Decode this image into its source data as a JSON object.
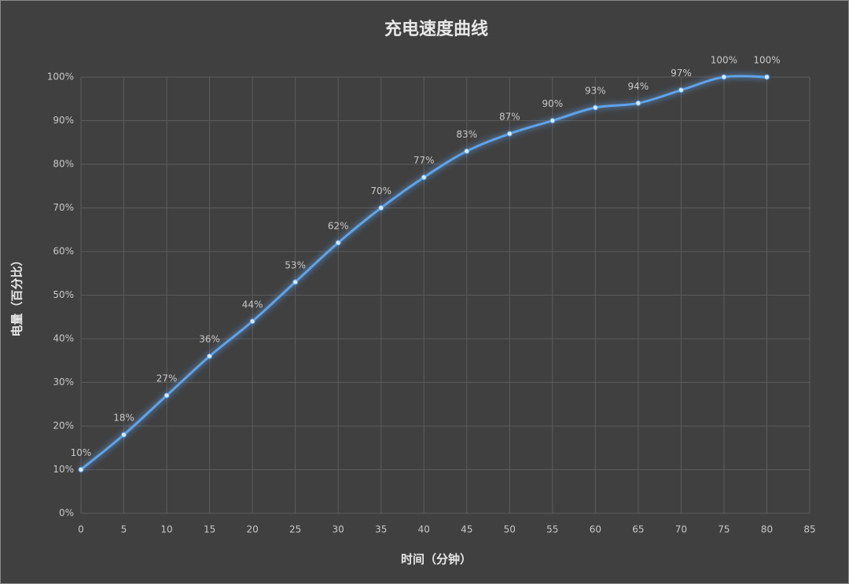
{
  "chart_data": {
    "type": "line",
    "title": "充电速度曲线",
    "x_label": "时间（分钟）",
    "y_label": "电量（百分比）",
    "x": [
      0,
      5,
      10,
      15,
      20,
      25,
      30,
      35,
      40,
      45,
      50,
      55,
      60,
      65,
      70,
      75,
      80
    ],
    "series": [
      {
        "name": "电量",
        "color": "#5ea3ea",
        "values": [
          10,
          18,
          27,
          36,
          44,
          53,
          62,
          70,
          77,
          83,
          87,
          90,
          93,
          94,
          97,
          100,
          100
        ],
        "value_labels": [
          "10%",
          "18%",
          "27%",
          "36%",
          "44%",
          "53%",
          "62%",
          "70%",
          "77%",
          "83%",
          "87%",
          "90%",
          "93%",
          "94%",
          "97%",
          "100%",
          "100%"
        ]
      }
    ],
    "xlim": [
      0,
      85
    ],
    "xticks": [
      0,
      5,
      10,
      15,
      20,
      25,
      30,
      35,
      40,
      45,
      50,
      55,
      60,
      65,
      70,
      75,
      80,
      85
    ],
    "ylim": [
      0,
      100
    ],
    "yticks": [
      {
        "value": 0,
        "label": "0%"
      },
      {
        "value": 10,
        "label": "10%"
      },
      {
        "value": 20,
        "label": "20%"
      },
      {
        "value": 30,
        "label": "30%"
      },
      {
        "value": 40,
        "label": "40%"
      },
      {
        "value": 50,
        "label": "50%"
      },
      {
        "value": 60,
        "label": "60%"
      },
      {
        "value": 70,
        "label": "70%"
      },
      {
        "value": 80,
        "label": "80%"
      },
      {
        "value": 90,
        "label": "90%"
      },
      {
        "value": 100,
        "label": "100%"
      }
    ],
    "grid": true,
    "smooth": true
  }
}
